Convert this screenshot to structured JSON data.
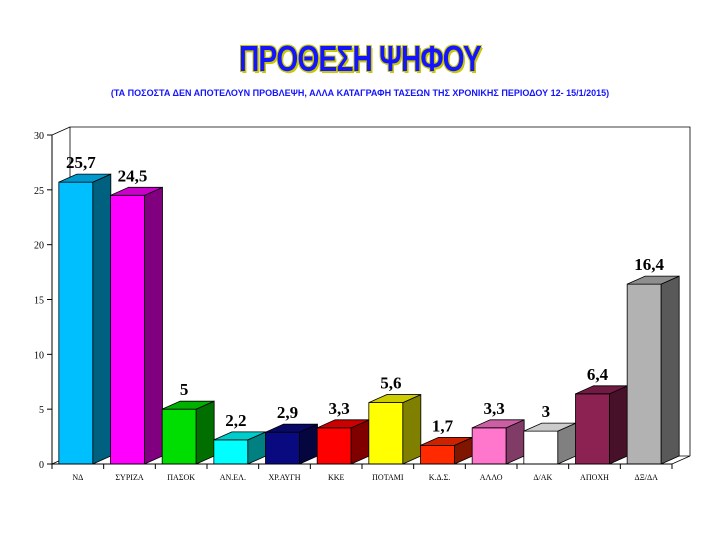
{
  "chart_data": {
    "type": "bar",
    "title": "ΠΡΟΘΕΣΗ ΨΗΦΟΥ",
    "subtitle": "(ΤΑ ΠΟΣΟΣΤΑ ΔΕΝ ΑΠΟΤΕΛΟΥΝ ΠΡΟΒΛΕΨΗ, ΑΛΛΑ ΚΑΤΑΓΡΑΦΗ ΤΑΣΕΩΝ ΤΗΣ ΧΡΟΝΙΚΗΣ ΠΕΡΙΟΔΟΥ 12- 15/1/2015)",
    "categories": [
      "ΝΔ",
      "ΣΥΡΙΖΑ",
      "ΠΑΣΟΚ",
      "ΑΝ.ΕΛ.",
      "ΧΡ.ΑΥΓΗ",
      "ΚΚΕ",
      "ΠΟΤΑΜΙ",
      "Κ.Δ.Σ.",
      "ΑΛΛΟ",
      "Δ/ΑΚ",
      "ΑΠΟΧΗ",
      "ΔΞ/ΔΑ"
    ],
    "values": [
      25.7,
      24.5,
      5,
      2.2,
      2.9,
      3.3,
      5.6,
      1.7,
      3.3,
      3,
      6.4,
      16.4
    ],
    "value_labels": [
      "25,7",
      "24,5",
      "5",
      "2,2",
      "2,9",
      "3,3",
      "5,6",
      "1,7",
      "3,3",
      "3",
      "6,4",
      "16,4"
    ],
    "colors": [
      "#00bfff",
      "#ff00ff",
      "#00dd00",
      "#00ffff",
      "#0a0a80",
      "#ff0000",
      "#ffff00",
      "#ff2a00",
      "#ff77cc",
      "#ffffff",
      "#8b2252",
      "#b2b2b2"
    ],
    "ylim": [
      0,
      30
    ],
    "yticks": [
      0,
      5,
      10,
      15,
      20,
      25,
      30
    ],
    "xlabel": "",
    "ylabel": "",
    "grid": false,
    "legend": "none"
  }
}
